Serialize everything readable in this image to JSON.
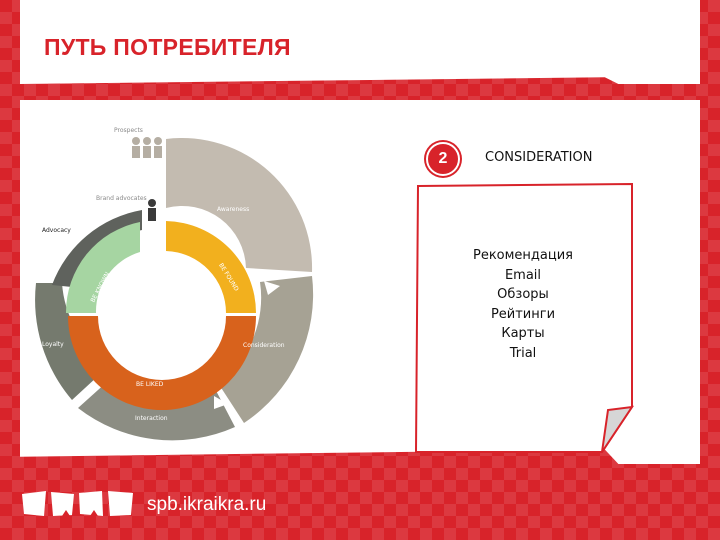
{
  "slide": {
    "title": "ПУТЬ ПОТРЕБИТЕЛЯ"
  },
  "diagram": {
    "prospects_label": "Prospects",
    "brand_advocates_label": "Brand advocates",
    "stages": {
      "awareness": "Awareness",
      "consideration": "Consideration",
      "interaction": "Interaction",
      "loyalty": "Loyalty",
      "advocacy": "Advocacy"
    },
    "inner_ring": {
      "be_found": "BE FOUND",
      "be_liked": "BE LIKED",
      "be_known": "BE KNOWN"
    },
    "colors": {
      "awareness": "#c3bbb0",
      "consideration": "#a6a294",
      "interaction": "#8c8d83",
      "loyalty": "#757a6e",
      "advocacy": "#5f625d",
      "be_found": "#f2b01e",
      "be_liked": "#d8621c",
      "be_known": "#a6d5a2"
    }
  },
  "stage_panel": {
    "step_number": "2",
    "stage_title": "CONSIDERATION",
    "items": [
      "Рекомендация",
      "Email",
      "Обзоры",
      "Рейтинги",
      "Карты",
      "Trial"
    ]
  },
  "footer": {
    "url": "spb.ikraikra.ru"
  },
  "theme": {
    "brand_red": "#d8232a"
  }
}
